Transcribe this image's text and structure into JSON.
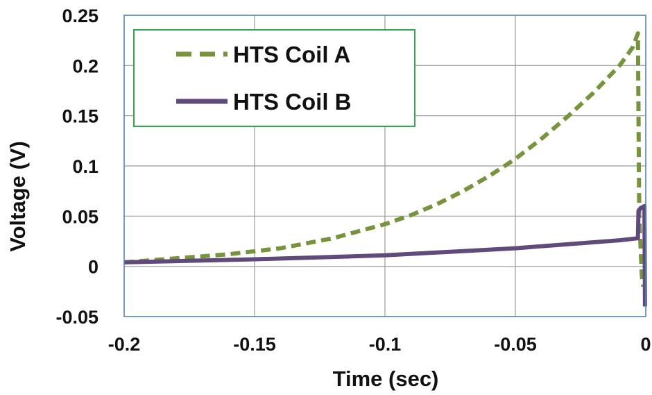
{
  "chart_data": {
    "type": "line",
    "xlabel": "Time (sec)",
    "ylabel": "Voltage (V)",
    "xlim": [
      -0.2,
      0
    ],
    "ylim": [
      -0.05,
      0.25
    ],
    "x_ticks": [
      -0.2,
      -0.15,
      -0.1,
      -0.05,
      0
    ],
    "x_tick_labels": [
      "-0.2",
      "-0.15",
      "-0.1",
      "-0.05",
      "0"
    ],
    "y_ticks": [
      -0.05,
      0,
      0.05,
      0.1,
      0.15,
      0.2,
      0.25
    ],
    "y_tick_labels": [
      "-0.05",
      "0",
      "0.05",
      "0.1",
      "0.15",
      "0.2",
      "0.25"
    ],
    "grid": true,
    "legend_position": "top-left",
    "series": [
      {
        "name": "HTS Coil A",
        "color": "#77933C",
        "style": "dashed",
        "x": [
          -0.2,
          -0.18,
          -0.16,
          -0.14,
          -0.12,
          -0.1,
          -0.09,
          -0.08,
          -0.07,
          -0.06,
          -0.05,
          -0.04,
          -0.03,
          -0.02,
          -0.01,
          -0.005,
          -0.003,
          -0.0025,
          -0.0015,
          -0.001
        ],
        "y": [
          0.004,
          0.008,
          0.012,
          0.018,
          0.028,
          0.042,
          0.051,
          0.062,
          0.075,
          0.09,
          0.107,
          0.127,
          0.149,
          0.173,
          0.2,
          0.218,
          0.232,
          0.05,
          -0.01,
          -0.02
        ]
      },
      {
        "name": "HTS Coil B",
        "color": "#604A7B",
        "style": "solid",
        "x": [
          -0.2,
          -0.15,
          -0.1,
          -0.05,
          -0.01,
          -0.003,
          -0.0028,
          -0.002,
          -0.0005,
          -0.0003
        ],
        "y": [
          0.004,
          0.007,
          0.011,
          0.018,
          0.026,
          0.028,
          0.055,
          0.058,
          0.06,
          -0.04
        ]
      }
    ]
  }
}
